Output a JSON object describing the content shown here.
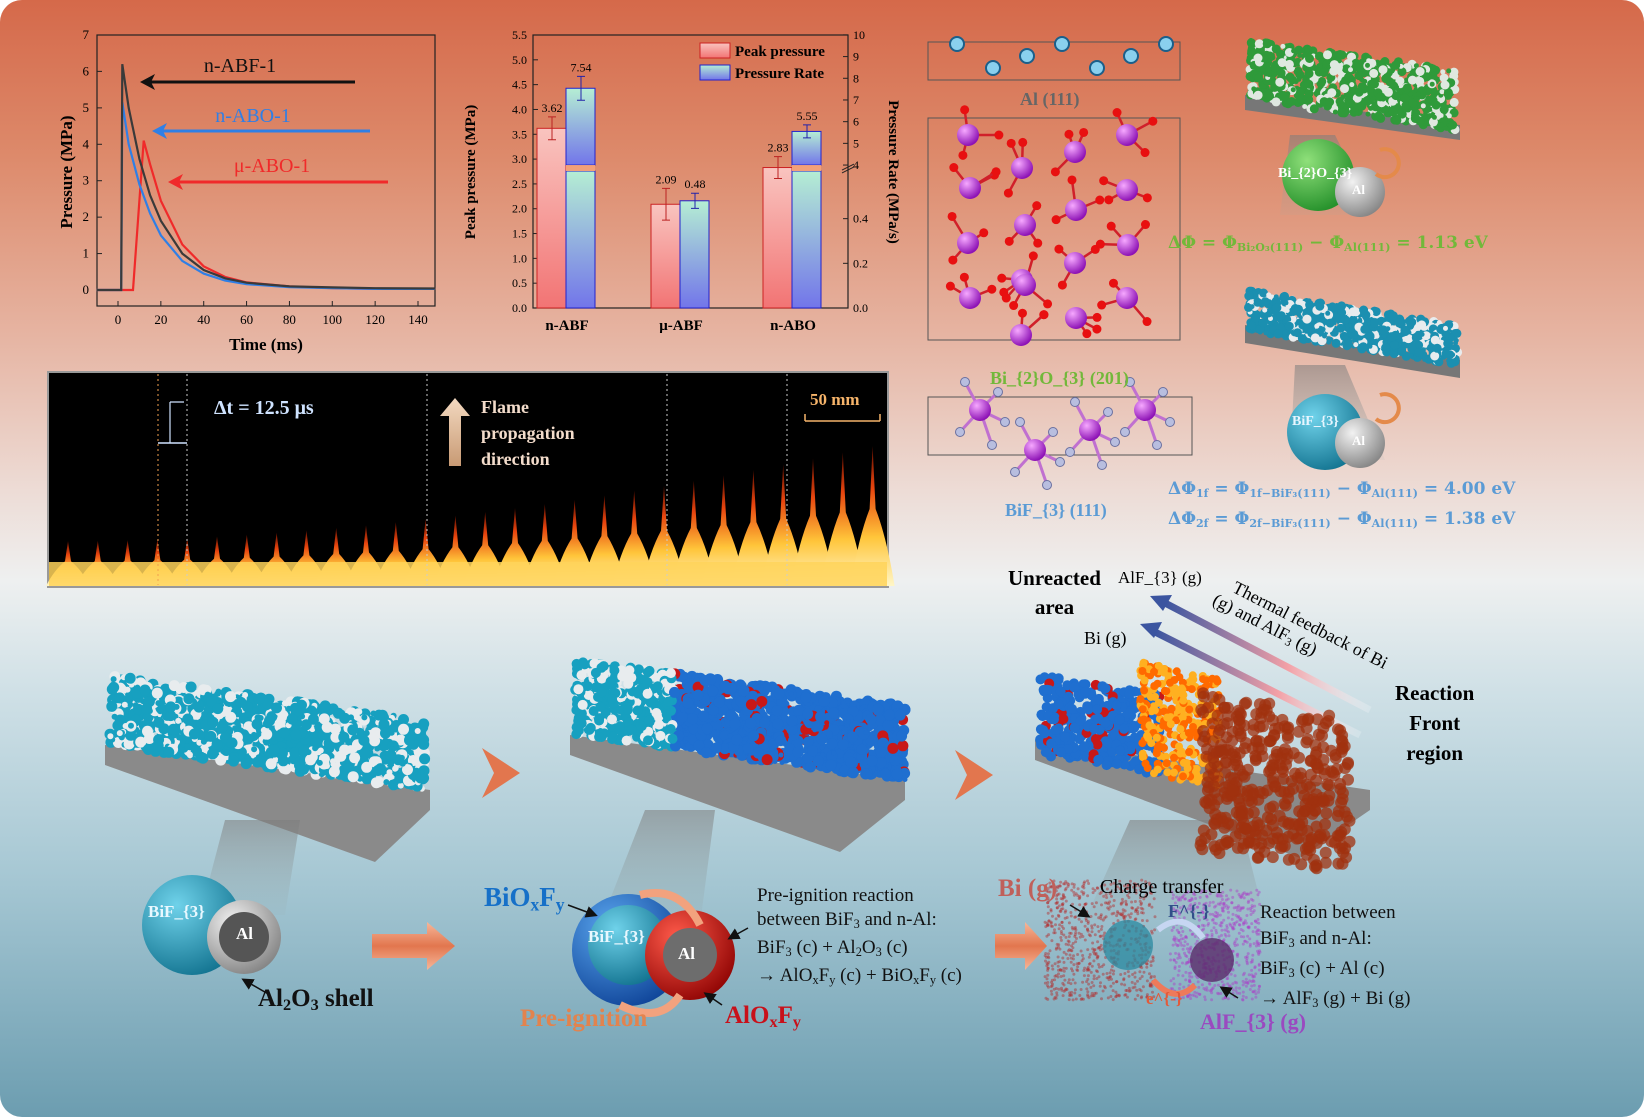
{
  "colors": {
    "nabf": "#333333",
    "nabo": "#2f7fe6",
    "mabo": "#f02a2a",
    "peak": "#f07a7a",
    "rate": "#7b7be8",
    "green": "#72b83a",
    "blue": "#5b9bd5"
  },
  "chart_data": [
    {
      "type": "line",
      "xlabel": "Time (ms)",
      "ylabel": "Pressure (MPa)",
      "xlim": [
        -10,
        148
      ],
      "ylim": [
        -0.5,
        7
      ],
      "xticks": [
        0,
        20,
        40,
        60,
        80,
        100,
        120,
        140
      ],
      "yticks": [
        0,
        1,
        2,
        3,
        4,
        5,
        6,
        7
      ],
      "series": [
        {
          "name": "n-ABF-1",
          "color": "#3a3a3a",
          "points": [
            [
              -10,
              0
            ],
            [
              1.5,
              0
            ],
            [
              2,
              6.2
            ],
            [
              5,
              5.0
            ],
            [
              10,
              3.6
            ],
            [
              15,
              2.6
            ],
            [
              20,
              1.9
            ],
            [
              30,
              1.0
            ],
            [
              40,
              0.55
            ],
            [
              50,
              0.32
            ],
            [
              60,
              0.2
            ],
            [
              80,
              0.1
            ],
            [
              100,
              0.07
            ],
            [
              120,
              0.05
            ],
            [
              148,
              0.04
            ]
          ]
        },
        {
          "name": "n-ABO-1",
          "color": "#2f7fe6",
          "points": [
            [
              -10,
              0
            ],
            [
              1.5,
              0
            ],
            [
              2,
              5.15
            ],
            [
              5,
              4.0
            ],
            [
              10,
              2.9
            ],
            [
              15,
              2.1
            ],
            [
              20,
              1.5
            ],
            [
              30,
              0.8
            ],
            [
              40,
              0.45
            ],
            [
              50,
              0.26
            ],
            [
              60,
              0.16
            ],
            [
              80,
              0.08
            ],
            [
              100,
              0.05
            ],
            [
              120,
              0.03
            ],
            [
              148,
              0.03
            ]
          ]
        },
        {
          "name": "μ-ABO-1",
          "color": "#f02a2a",
          "points": [
            [
              -10,
              0
            ],
            [
              7,
              0
            ],
            [
              12,
              4.1
            ],
            [
              15,
              3.45
            ],
            [
              20,
              2.45
            ],
            [
              30,
              1.25
            ],
            [
              40,
              0.65
            ],
            [
              50,
              0.36
            ],
            [
              60,
              0.21
            ],
            [
              80,
              0.1
            ],
            [
              100,
              0.05
            ],
            [
              120,
              0.03
            ],
            [
              148,
              0.03
            ]
          ]
        }
      ],
      "annotations": [
        "n-ABF-1",
        "n-ABO-1",
        "μ-ABO-1"
      ]
    },
    {
      "type": "bar",
      "categories": [
        "n-ABF",
        "μ-ABF",
        "n-ABO"
      ],
      "ylabel": "Peak pressure (MPa)",
      "y2label": "Pressure Rate (MPa/s)",
      "ylim": [
        0,
        5.5
      ],
      "yticks": [
        "0.0",
        "0.5",
        "1.0",
        "1.5",
        "2.0",
        "2.5",
        "3.0",
        "3.5",
        "4.0",
        "4.5",
        "5.0",
        "5.5"
      ],
      "y2_break": {
        "lower": [
          0,
          0.6
        ],
        "upper": [
          4,
          10
        ]
      },
      "y2ticks_lower": [
        "0.0",
        "0.2",
        "0.4"
      ],
      "y2ticks_upper": [
        "4",
        "5",
        "6",
        "7",
        "8",
        "9",
        "10"
      ],
      "series": [
        {
          "name": "Peak pressure",
          "axis": "left",
          "values": [
            3.62,
            2.09,
            2.83
          ],
          "errors": [
            0.23,
            0.32,
            0.22
          ],
          "labels": [
            "3.62",
            "2.09",
            "2.83"
          ]
        },
        {
          "name": "Pressure Rate",
          "axis": "right",
          "values": [
            7.54,
            0.48,
            5.55
          ],
          "errors": [
            0.55,
            0.034,
            0.3
          ],
          "labels": [
            "7.54",
            "0.48",
            "5.55"
          ]
        }
      ],
      "legend": "top-right"
    }
  ],
  "flame": {
    "dt_label": "Δt = 12.5 μs",
    "direction_label": [
      "Flame",
      "propagation",
      "direction"
    ],
    "scale_label": "50 mm"
  },
  "crystals": {
    "al": "Al (111)",
    "bi2o3": "Bi_{2}O_{3} (201)",
    "bif3": "BiF_{3} (111)"
  },
  "right": {
    "sphere1": "Bi_{2}O_{3}",
    "al1": "Al",
    "eq1": "ΔΦ = Φ_{Bi₂O₃(111)} − Φ_{Al(111)} =  1.13 eV",
    "sphere2": "BiF_{3}",
    "al2": "Al",
    "eq2": "ΔΦ_{1f} = Φ_{1f−BiF₃(111)} − Φ_{Al(111)} = 4.00 eV",
    "eq3": "ΔΦ_{2f} = Φ_{2f−BiF₃(111)} − Φ_{Al(111)} = 1.38 eV"
  },
  "bottom": {
    "p1": {
      "core": "BiF_{3}",
      "al": "Al",
      "shell": "Al_{2}O_{3} shell"
    },
    "p2": {
      "outer": "BiO_{x}F_{y}",
      "core": "BiF_{3}",
      "al": "Al",
      "pre": "Pre-ignition",
      "alof": "AlO_{x}F_{y}",
      "desc": [
        "Pre-ignition reaction",
        "between BiF_{3} and n-Al:",
        "BiF_{3} (c) + Al_{2}O_{3} (c)",
        "→ AlO_{x}F_{y} (c) + BiO_{x}F_{y} (c)"
      ]
    },
    "p3": {
      "unreacted": [
        "Unreacted",
        "area"
      ],
      "alf3g": "AlF_{3} (g)",
      "big": "Bi (g)",
      "thermal": [
        "Thermal feedback of Bi",
        "(g) and AlF_{3} (g)"
      ],
      "front": [
        "Reaction",
        "Front",
        "region"
      ],
      "bi_g": "Bi (g)",
      "charge": "Charge transfer",
      "f": "F^{-}",
      "e": "e^{-}",
      "alf3": "AlF_{3} (g)",
      "desc": [
        "Reaction between",
        "BiF_{3} and n-Al:",
        "BiF_{3} (c) + Al (c)",
        "→ AlF_{3} (g) + Bi (g)"
      ]
    }
  }
}
